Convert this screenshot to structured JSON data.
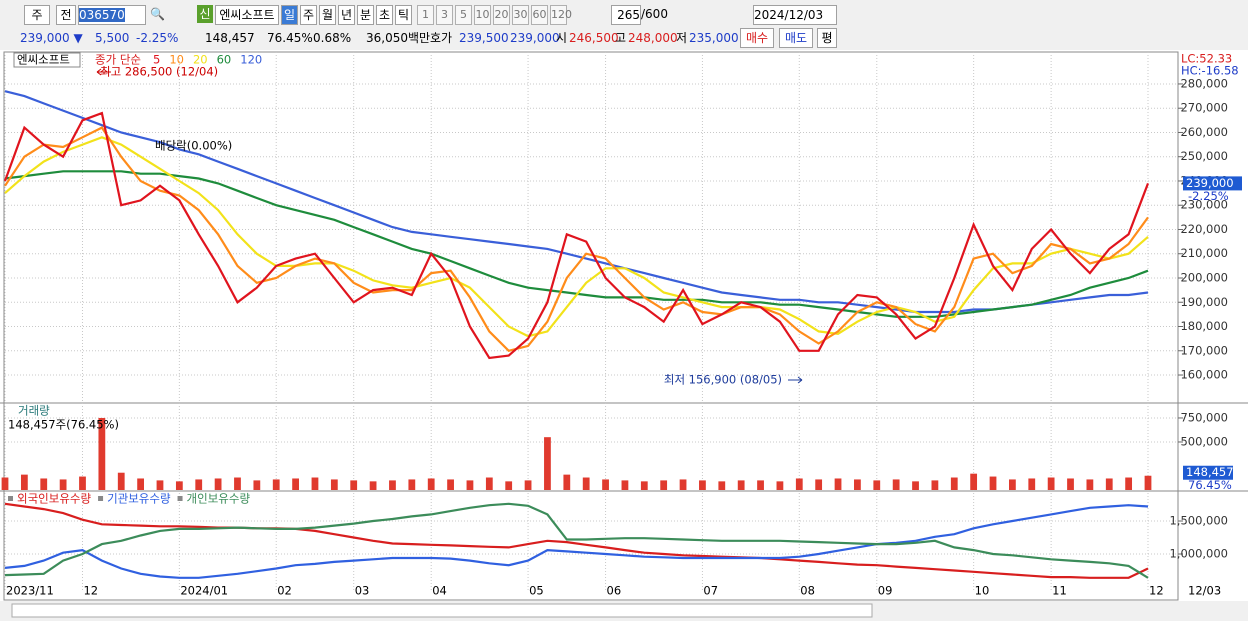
{
  "toolbar": {
    "period": "주",
    "range": "전",
    "code": "036570",
    "name": "엔씨소프트",
    "intervals": [
      "일",
      "주",
      "월",
      "년",
      "분",
      "초",
      "틱"
    ],
    "counts": [
      "1",
      "3",
      "5",
      "10",
      "20",
      "30",
      "60",
      "120"
    ],
    "shown": "265",
    "total": "/600",
    "date": "2024/12/03"
  },
  "quote": {
    "price": "239,000 ▼",
    "change": "5,500",
    "rate": "-2.25%",
    "volume": "148,457",
    "volume_rate": "76.45%",
    "turnover": "0.68%",
    "amount": "36,050백만",
    "bid_label": "호가",
    "ask": "239,500",
    "bid": "239,000",
    "open_label": "시",
    "open": "246,500",
    "high_label": "고",
    "high": "248,000",
    "low_label": "저",
    "low": "235,000",
    "buy": "매수",
    "sell": "매도",
    "avg": "평"
  },
  "chart_data": {
    "type": "stock",
    "last_date": "12/03",
    "categories": [
      "2023/11",
      null,
      null,
      null,
      "12",
      null,
      null,
      null,
      null,
      "2024/01",
      null,
      null,
      null,
      null,
      "02",
      null,
      null,
      null,
      "03",
      null,
      null,
      null,
      "04",
      null,
      null,
      null,
      null,
      "05",
      null,
      null,
      null,
      "06",
      null,
      null,
      null,
      null,
      "07",
      null,
      null,
      null,
      null,
      "08",
      null,
      null,
      null,
      "09",
      null,
      null,
      null,
      null,
      "10",
      null,
      null,
      null,
      "11",
      null,
      null,
      null,
      null,
      "12"
    ],
    "panels": [
      {
        "type": "line",
        "name": "엔씨소프트",
        "legend_prefix": "종가 단순",
        "lc": "LC:52.33",
        "hc": "HC:-16.58",
        "high_label": "최고 286,500 (12/04)",
        "low_label": "최저 156,900 (08/05)",
        "dividend_label": "배당락(0.00%)",
        "last_label": "239,000",
        "last_change": "-2.25%",
        "grid": true,
        "ylim": [
          149700,
          290700
        ],
        "yticks": [
          {
            "value": 160000,
            "label": "160,000"
          },
          {
            "value": 170000,
            "label": "170,000"
          },
          {
            "value": 180000,
            "label": "180,000"
          },
          {
            "value": 190000,
            "label": "190,000"
          },
          {
            "value": 200000,
            "label": "200,000"
          },
          {
            "value": 210000,
            "label": "210,000"
          },
          {
            "value": 220000,
            "label": "220,000"
          },
          {
            "value": 230000,
            "label": "230,000"
          },
          {
            "value": 240000,
            "label": "240,000"
          },
          {
            "value": 250000,
            "label": "250,000"
          },
          {
            "value": 260000,
            "label": "260,000"
          },
          {
            "value": 270000,
            "label": "270,000"
          },
          {
            "value": 280000,
            "label": "280,000"
          }
        ],
        "series": [
          {
            "name": "120",
            "color": "#3a5fd9",
            "values": [
              277000,
              275000,
              272000,
              269000,
              266000,
              263000,
              260000,
              258000,
              256000,
              253000,
              251000,
              248000,
              245000,
              242000,
              239000,
              236000,
              233000,
              230000,
              227000,
              224000,
              221000,
              219000,
              218000,
              217000,
              216000,
              215000,
              214000,
              213000,
              212000,
              210000,
              208000,
              206000,
              204000,
              202000,
              200000,
              198000,
              196000,
              194000,
              193000,
              192000,
              191000,
              191000,
              190000,
              190000,
              189000,
              188000,
              187000,
              186000,
              186000,
              186000,
              187000,
              187000,
              188000,
              189000,
              190000,
              191000,
              192000,
              193000,
              193000,
              194000
            ]
          },
          {
            "name": "60",
            "color": "#1e8c3c",
            "values": [
              241000,
              242000,
              243000,
              244000,
              244000,
              244000,
              244000,
              243000,
              243000,
              242000,
              241000,
              239000,
              236000,
              233000,
              230000,
              228000,
              226000,
              224000,
              221000,
              218000,
              215000,
              212000,
              210000,
              207000,
              204000,
              201000,
              198000,
              196000,
              195000,
              194000,
              193000,
              192000,
              192000,
              192000,
              191000,
              191000,
              191000,
              190000,
              190000,
              190000,
              189000,
              189000,
              188000,
              187000,
              186000,
              185000,
              184000,
              184000,
              184000,
              185000,
              186000,
              187000,
              188000,
              189000,
              191000,
              193000,
              196000,
              198000,
              200000,
              203000
            ]
          },
          {
            "name": "20",
            "color": "#f2e21a",
            "values": [
              235000,
              242000,
              248000,
              252000,
              255000,
              258000,
              255000,
              250000,
              245000,
              240000,
              235000,
              228000,
              218000,
              210000,
              205000,
              205000,
              206000,
              206000,
              203000,
              199000,
              197000,
              196000,
              198000,
              200000,
              196000,
              188000,
              180000,
              176000,
              178000,
              188000,
              198000,
              204000,
              204000,
              200000,
              194000,
              192000,
              190000,
              188000,
              188000,
              188000,
              187000,
              183000,
              178000,
              177000,
              182000,
              186000,
              188000,
              186000,
              182000,
              184000,
              195000,
              204000,
              206000,
              206000,
              210000,
              212000,
              210000,
              208000,
              210000,
              217000
            ]
          },
          {
            "name": "10",
            "color": "#ff8c1a",
            "values": [
              238000,
              250000,
              255000,
              254000,
              258000,
              262000,
              250000,
              240000,
              236000,
              234000,
              228000,
              218000,
              205000,
              198000,
              200000,
              205000,
              208000,
              206000,
              198000,
              194000,
              195000,
              195000,
              202000,
              203000,
              192000,
              178000,
              170000,
              172000,
              182000,
              200000,
              210000,
              208000,
              200000,
              192000,
              187000,
              190000,
              186000,
              185000,
              188000,
              188000,
              185000,
              178000,
              173000,
              178000,
              186000,
              190000,
              188000,
              181000,
              178000,
              188000,
              208000,
              210000,
              202000,
              205000,
              214000,
              212000,
              206000,
              208000,
              214000,
              225000
            ]
          },
          {
            "name": "5",
            "color": "#e0141e",
            "values": [
              240000,
              262000,
              255000,
              250000,
              265000,
              268000,
              230000,
              232000,
              238000,
              232000,
              218000,
              205000,
              190000,
              196000,
              205000,
              208000,
              210000,
              200000,
              190000,
              195000,
              196000,
              193000,
              210000,
              200000,
              180000,
              167000,
              168000,
              175000,
              190000,
              218000,
              215000,
              200000,
              192000,
              188000,
              182000,
              195000,
              181000,
              185000,
              190000,
              188000,
              182000,
              170000,
              170000,
              185000,
              193000,
              192000,
              185000,
              175000,
              180000,
              200000,
              222000,
              205000,
              195000,
              212000,
              220000,
              210000,
              202000,
              212000,
              218000,
              239000
            ]
          }
        ]
      },
      {
        "type": "bar",
        "name": "거래량",
        "summary": "148,457주(76.45%)",
        "last_label": "148,457",
        "last_change": "76.45%",
        "color": "#e03a2e",
        "grid": true,
        "ylim": [
          0,
          885000
        ],
        "yticks": [
          {
            "value": 500000,
            "label": "500,000"
          },
          {
            "value": 750000,
            "label": "750,000"
          }
        ],
        "values": [
          130000,
          160000,
          120000,
          110000,
          140000,
          750000,
          180000,
          120000,
          100000,
          90000,
          110000,
          120000,
          130000,
          100000,
          110000,
          120000,
          130000,
          110000,
          100000,
          90000,
          100000,
          110000,
          120000,
          110000,
          100000,
          130000,
          90000,
          100000,
          550000,
          160000,
          130000,
          110000,
          100000,
          90000,
          100000,
          110000,
          100000,
          90000,
          100000,
          100000,
          90000,
          120000,
          110000,
          120000,
          110000,
          100000,
          110000,
          90000,
          100000,
          130000,
          170000,
          140000,
          110000,
          120000,
          130000,
          120000,
          110000,
          120000,
          130000,
          148457
        ]
      },
      {
        "type": "line",
        "grid": true,
        "ylim": [
          576000,
          1894000
        ],
        "yticks": [
          {
            "value": 1000000,
            "label": "1,000,000"
          },
          {
            "value": 1500000,
            "label": "1,500,000"
          }
        ],
        "series": [
          {
            "name": "외국인보유수량",
            "color": "#d81e1e",
            "values": [
              1760000,
              1720000,
              1680000,
              1620000,
              1520000,
              1450000,
              1440000,
              1430000,
              1420000,
              1420000,
              1410000,
              1400000,
              1400000,
              1390000,
              1390000,
              1380000,
              1350000,
              1300000,
              1250000,
              1200000,
              1160000,
              1150000,
              1140000,
              1130000,
              1120000,
              1110000,
              1100000,
              1150000,
              1200000,
              1180000,
              1140000,
              1100000,
              1060000,
              1020000,
              1000000,
              980000,
              970000,
              960000,
              950000,
              940000,
              920000,
              900000,
              880000,
              860000,
              840000,
              830000,
              810000,
              790000,
              770000,
              750000,
              730000,
              710000,
              690000,
              670000,
              650000,
              650000,
              640000,
              640000,
              640000,
              780000
            ]
          },
          {
            "name": "기관보유수량",
            "color": "#3060e0",
            "values": [
              790000,
              820000,
              900000,
              1020000,
              1060000,
              900000,
              780000,
              700000,
              660000,
              640000,
              640000,
              670000,
              700000,
              740000,
              780000,
              830000,
              850000,
              880000,
              900000,
              920000,
              940000,
              940000,
              940000,
              930000,
              900000,
              860000,
              830000,
              900000,
              1060000,
              1040000,
              1020000,
              1000000,
              980000,
              960000,
              950000,
              940000,
              940000,
              940000,
              940000,
              940000,
              940000,
              960000,
              1000000,
              1050000,
              1100000,
              1150000,
              1170000,
              1200000,
              1260000,
              1300000,
              1390000,
              1450000,
              1500000,
              1550000,
              1600000,
              1650000,
              1700000,
              1720000,
              1740000,
              1720000
            ]
          },
          {
            "name": "개인보유수량",
            "color": "#3c8c5a",
            "values": [
              680000,
              690000,
              700000,
              900000,
              1000000,
              1150000,
              1200000,
              1280000,
              1350000,
              1380000,
              1380000,
              1390000,
              1400000,
              1390000,
              1380000,
              1380000,
              1400000,
              1430000,
              1460000,
              1500000,
              1530000,
              1570000,
              1600000,
              1650000,
              1700000,
              1740000,
              1760000,
              1730000,
              1600000,
              1220000,
              1220000,
              1230000,
              1240000,
              1240000,
              1230000,
              1220000,
              1210000,
              1200000,
              1200000,
              1200000,
              1200000,
              1190000,
              1180000,
              1170000,
              1160000,
              1150000,
              1150000,
              1170000,
              1200000,
              1100000,
              1060000,
              1000000,
              980000,
              950000,
              920000,
              900000,
              880000,
              860000,
              820000,
              640000
            ]
          }
        ]
      }
    ]
  }
}
